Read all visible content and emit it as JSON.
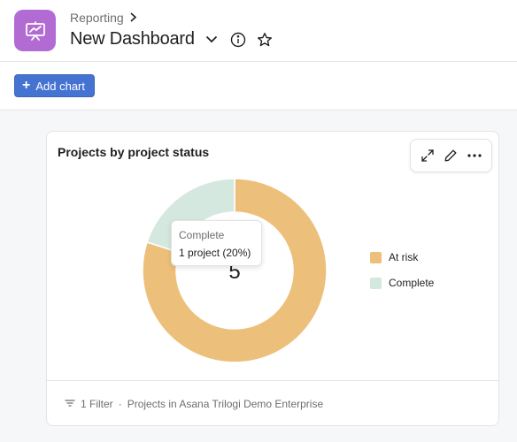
{
  "header": {
    "breadcrumb": "Reporting",
    "title": "New Dashboard",
    "app_icon": "presentation-chart-icon"
  },
  "toolbar": {
    "add_chart_label": "Add chart"
  },
  "card": {
    "title": "Projects by project status",
    "actions": [
      "expand-icon",
      "pencil-icon",
      "more-icon"
    ],
    "footer_filter": "1 Filter",
    "footer_separator": "·",
    "footer_scope": "Projects in Asana Trilogi Demo Enterprise"
  },
  "tooltip": {
    "title": "Complete",
    "value": "1 project (20%)"
  },
  "chart_data": {
    "type": "pie",
    "variant": "donut",
    "center_label": "5",
    "categories": [
      "At risk",
      "Complete"
    ],
    "values": [
      4,
      1
    ],
    "colors": [
      "#ecc07a",
      "#d5e8e0"
    ],
    "legend_position": "right"
  }
}
